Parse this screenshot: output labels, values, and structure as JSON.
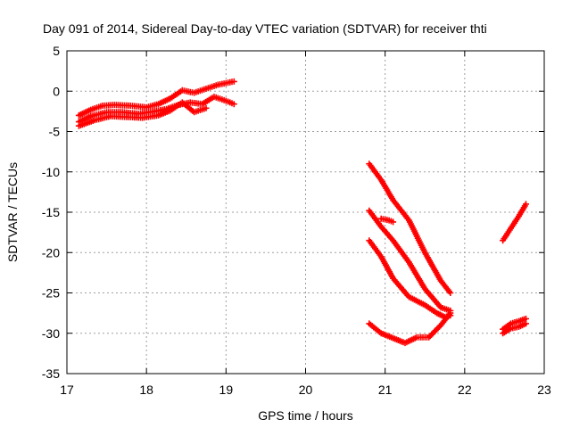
{
  "chart_data": {
    "type": "scatter",
    "title": "Day 091 of 2014, Sidereal Day-to-day VTEC variation (SDTVAR) for receiver thti",
    "xlabel": "GPS time / hours",
    "ylabel": "SDTVAR / TECUs",
    "xlim": [
      17,
      23
    ],
    "ylim": [
      -35,
      5
    ],
    "xticks": [
      17,
      18,
      19,
      20,
      21,
      22,
      23
    ],
    "yticks": [
      5,
      0,
      -5,
      -10,
      -15,
      -20,
      -25,
      -30,
      -35
    ],
    "grid": true,
    "marker": "plus",
    "color": "#ff0000",
    "series": [
      {
        "x": [
          17.15,
          17.3,
          17.45,
          17.6,
          17.8,
          18.0,
          18.15,
          18.3,
          18.45,
          18.6,
          18.75,
          18.9,
          19.1
        ],
        "y": [
          -3.0,
          -2.3,
          -1.8,
          -1.7,
          -1.8,
          -2.0,
          -1.6,
          -0.9,
          0.1,
          -0.2,
          0.3,
          0.8,
          1.2
        ]
      },
      {
        "x": [
          17.15,
          17.3,
          17.5,
          17.7,
          17.9,
          18.1,
          18.25,
          18.4,
          18.55,
          18.7,
          18.85,
          19.0,
          19.1
        ],
        "y": [
          -3.8,
          -3.1,
          -2.6,
          -2.6,
          -2.8,
          -2.5,
          -2.2,
          -1.7,
          -1.4,
          -1.6,
          -0.7,
          -1.2,
          -1.6
        ]
      },
      {
        "x": [
          17.15,
          17.35,
          17.55,
          17.75,
          17.95,
          18.15,
          18.3,
          18.45,
          18.6,
          18.75
        ],
        "y": [
          -4.3,
          -3.6,
          -3.1,
          -3.2,
          -3.3,
          -3.0,
          -2.4,
          -1.4,
          -2.6,
          -2.1
        ]
      },
      {
        "x": [
          20.8,
          20.95,
          21.1,
          21.3,
          21.5,
          21.7,
          21.82
        ],
        "y": [
          -9.0,
          -11.0,
          -13.5,
          -16.0,
          -20.0,
          -23.5,
          -25.0
        ]
      },
      {
        "x": [
          20.8,
          20.95,
          21.1,
          21.3,
          21.5,
          21.7,
          21.82
        ],
        "y": [
          -14.8,
          -16.8,
          -18.5,
          -21.2,
          -24.5,
          -26.8,
          -27.2
        ]
      },
      {
        "x": [
          20.8,
          20.95,
          21.1,
          21.3,
          21.5,
          21.65,
          21.75,
          21.82
        ],
        "y": [
          -18.5,
          -20.5,
          -23.2,
          -25.5,
          -26.5,
          -27.5,
          -28.0,
          -27.8
        ]
      },
      {
        "x": [
          20.95,
          21.05,
          21.1
        ],
        "y": [
          -15.8,
          -16.0,
          -16.2
        ]
      },
      {
        "x": [
          20.8,
          20.95,
          21.1,
          21.25,
          21.4,
          21.55,
          21.7,
          21.82
        ],
        "y": [
          -28.8,
          -30.0,
          -30.6,
          -31.2,
          -30.5,
          -30.5,
          -29.0,
          -27.5
        ]
      },
      {
        "x": [
          22.48,
          22.58,
          22.68,
          22.77
        ],
        "y": [
          -18.5,
          -17.0,
          -15.5,
          -14.0
        ]
      },
      {
        "x": [
          22.48,
          22.58,
          22.68,
          22.77
        ],
        "y": [
          -29.5,
          -28.8,
          -28.5,
          -28.2
        ]
      },
      {
        "x": [
          22.48,
          22.58,
          22.68,
          22.77
        ],
        "y": [
          -30.0,
          -29.4,
          -29.2,
          -28.8
        ]
      }
    ]
  }
}
